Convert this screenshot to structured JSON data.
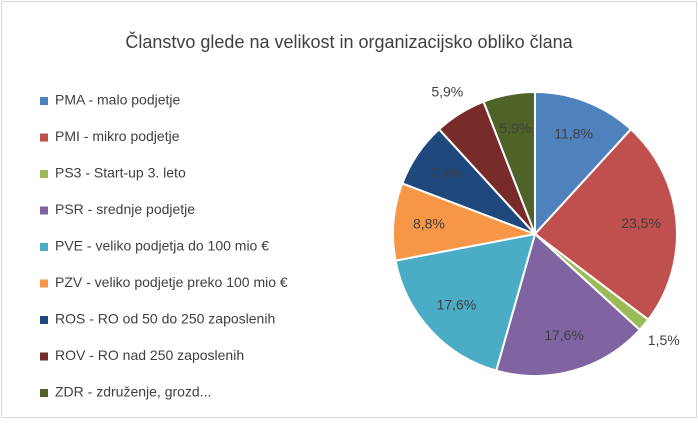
{
  "chart_data": {
    "type": "pie",
    "title": "Članstvo glede na velikost in organizacijsko obliko člana",
    "categories": [
      "PMA - malo podjetje",
      "PMI - mikro podjetje",
      "PS3 - Start-up 3. leto",
      "PSR -  srednje podjetje",
      "PVE - veliko podjetja do 100 mio €",
      "PZV - veliko podjetje preko 100 mio €",
      "ROS - RO od 50 do 250 zaposlenih",
      "ROV - RO nad 250 zaposlenih",
      "ZDR -  združenje, grozd..."
    ],
    "values": [
      11.8,
      23.5,
      1.5,
      17.6,
      17.6,
      8.8,
      7.4,
      5.9,
      5.9
    ],
    "value_labels": [
      "11,8%",
      "23,5%",
      "1,5%",
      "17,6%",
      "17,6%",
      "8,8%",
      "7,4%",
      "5,9%",
      "5,9%"
    ],
    "colors": [
      "#4f81bd",
      "#c0504d",
      "#9bbb59",
      "#8064a2",
      "#4bacc6",
      "#f79646",
      "#1f497d",
      "#772c2a",
      "#4f6228"
    ],
    "legend": "left"
  }
}
